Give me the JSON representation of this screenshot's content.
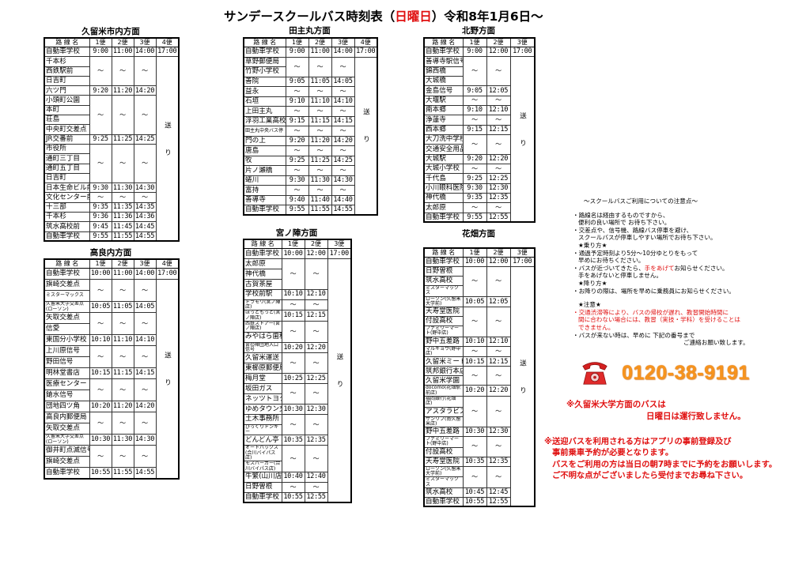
{
  "title": {
    "prefix": "サンデースクールバス時刻表（",
    "day": "日曜日",
    "suffix": "）令和8年1月6日～"
  },
  "tables": [
    {
      "title": "久留米市内方面",
      "headers": [
        "路 線 名",
        "1便",
        "2便",
        "3便",
        "4便"
      ],
      "send_label": "送り",
      "segments": [
        {
          "stops": [
            "自動車学校"
          ],
          "times": [
            "9:00",
            "11:00",
            "14:00",
            "17:00"
          ]
        },
        {
          "stops": [
            "千本杉",
            "西鉄駅前",
            "日吉町"
          ],
          "times": [
            "〜",
            "〜",
            "〜"
          ]
        },
        {
          "stops": [
            "六ツ門"
          ],
          "times": [
            "9:20",
            "11:20",
            "14:20"
          ]
        },
        {
          "stops": [
            "小頭町公園",
            "本町",
            "荘島",
            "中央町交差点"
          ],
          "times": [
            "〜",
            "〜",
            "〜"
          ]
        },
        {
          "stops": [
            "JR交番前"
          ],
          "times": [
            "9:25",
            "11:25",
            "14:25"
          ]
        },
        {
          "stops": [
            "市役所",
            "通町三丁目",
            "通町五丁目",
            "日吉町"
          ],
          "times": [
            "〜",
            "〜",
            "〜"
          ]
        },
        {
          "stops": [
            "日本生命ビル前"
          ],
          "times": [
            "9:30",
            "11:30",
            "14:30"
          ]
        },
        {
          "stops": [
            "文化センター前"
          ],
          "times": [
            "〜",
            "〜",
            "〜"
          ]
        },
        {
          "stops": [
            "十三部"
          ],
          "times": [
            "9:35",
            "11:35",
            "14:35"
          ]
        },
        {
          "stops": [
            "千本杉"
          ],
          "times": [
            "9:36",
            "11:36",
            "14:36"
          ]
        },
        {
          "stops": [
            "筑水高校前"
          ],
          "times": [
            "9:45",
            "11:45",
            "14:45"
          ]
        },
        {
          "stops": [
            "自動車学校"
          ],
          "times": [
            "9:55",
            "11:55",
            "14:55"
          ]
        }
      ]
    },
    {
      "title": "高良内方面",
      "headers": [
        "路 線 名",
        "1便",
        "2便",
        "3便",
        "4便"
      ],
      "send_label": "送り",
      "segments": [
        {
          "stops": [
            "自動車学校"
          ],
          "times": [
            "10:00",
            "11:00",
            "14:00",
            "17:00"
          ]
        },
        {
          "stops": [
            "旗崎交差点",
            "ミスターマックス"
          ],
          "times": [
            "〜",
            "〜",
            "〜"
          ]
        },
        {
          "stops": [
            "久留米大学交差点(ローソン)"
          ],
          "times": [
            "10:05",
            "11:05",
            "14:05"
          ]
        },
        {
          "stops": [
            "矢取交差点",
            "信愛"
          ],
          "times": [
            "〜",
            "〜",
            "〜"
          ]
        },
        {
          "stops": [
            "東国分小学校"
          ],
          "times": [
            "10:10",
            "11:10",
            "14:10"
          ]
        },
        {
          "stops": [
            "上川原信号",
            "野田信号"
          ],
          "times": [
            "〜",
            "〜",
            "〜"
          ]
        },
        {
          "stops": [
            "明林堂書店"
          ],
          "times": [
            "10:15",
            "11:15",
            "14:15"
          ]
        },
        {
          "stops": [
            "医療センター",
            "鎗水信号"
          ],
          "times": [
            "〜",
            "〜",
            "〜"
          ]
        },
        {
          "stops": [
            "団地四ツ角"
          ],
          "times": [
            "10:20",
            "11:20",
            "14:20"
          ]
        },
        {
          "stops": [
            "高良内郵便局",
            "矢取交差点"
          ],
          "times": [
            "〜",
            "〜",
            "〜"
          ]
        },
        {
          "stops": [
            "久留米大学交差点(ローソン)"
          ],
          "times": [
            "10:30",
            "11:30",
            "14:30"
          ]
        },
        {
          "stops": [
            "御井町点滅信号",
            "旗崎交差点"
          ],
          "times": [
            "〜",
            "〜",
            "〜"
          ]
        },
        {
          "stops": [
            "自動車学校"
          ],
          "times": [
            "10:55",
            "11:55",
            "14:55"
          ]
        }
      ]
    },
    {
      "title": "田主丸方面",
      "headers": [
        "路 線 名",
        "1便",
        "2便",
        "3便",
        "4便"
      ],
      "send_label": "送り",
      "segments": [
        {
          "stops": [
            "自動車学校"
          ],
          "times": [
            "9:00",
            "11:00",
            "14:00",
            "17:00"
          ]
        },
        {
          "stops": [
            "草野郵便局",
            "竹野小学校"
          ],
          "times": [
            "〜",
            "〜",
            "〜"
          ]
        },
        {
          "stops": [
            "善院"
          ],
          "times": [
            "9:05",
            "11:05",
            "14:05"
          ]
        },
        {
          "stops": [
            "益永"
          ],
          "times": [
            "〜",
            "〜",
            "〜"
          ]
        },
        {
          "stops": [
            "石垣"
          ],
          "times": [
            "9:10",
            "11:10",
            "14:10"
          ]
        },
        {
          "stops": [
            "上田主丸"
          ],
          "times": [
            "〜",
            "〜",
            "〜"
          ]
        },
        {
          "stops": [
            "浮羽工業高校前"
          ],
          "times": [
            "9:15",
            "11:15",
            "14:15"
          ]
        },
        {
          "stops": [
            "田主丸中央バス停"
          ],
          "times": [
            "〜",
            "〜",
            "〜"
          ]
        },
        {
          "stops": [
            "門の上"
          ],
          "times": [
            "9:20",
            "11:20",
            "14:20"
          ]
        },
        {
          "stops": [
            "唐島"
          ],
          "times": [
            "〜",
            "〜",
            "〜"
          ]
        },
        {
          "stops": [
            "牧"
          ],
          "times": [
            "9:25",
            "11:25",
            "14:25"
          ]
        },
        {
          "stops": [
            "片ノ瀬橋"
          ],
          "times": [
            "〜",
            "〜",
            "〜"
          ]
        },
        {
          "stops": [
            "蜷川"
          ],
          "times": [
            "9:30",
            "11:30",
            "14:30"
          ]
        },
        {
          "stops": [
            "富持"
          ],
          "times": [
            "〜",
            "〜",
            "〜"
          ]
        },
        {
          "stops": [
            "善導寺"
          ],
          "times": [
            "9:40",
            "11:40",
            "14:40"
          ]
        },
        {
          "stops": [
            "自動車学校"
          ],
          "times": [
            "9:55",
            "11:55",
            "14:55"
          ]
        }
      ]
    },
    {
      "title": "宮ノ陣方面",
      "headers": [
        "路 線 名",
        "1便",
        "2便",
        "3便"
      ],
      "send_label": "送り",
      "segments": [
        {
          "stops": [
            "自動車学校"
          ],
          "times": [
            "10:00",
            "12:00",
            "17:00"
          ]
        },
        {
          "stops": [
            "太郎原",
            "神代橋",
            "古賀茶屋"
          ],
          "times": [
            "〜",
            "〜"
          ]
        },
        {
          "stops": [
            "学校前駅"
          ],
          "times": [
            "10:10",
            "12:10"
          ]
        },
        {
          "stops": [
            "ドラモリ(宮ノ陣店)"
          ],
          "times": [
            "〜",
            "〜"
          ]
        },
        {
          "stops": [
            "ほっともっと(宮ノ陣店)"
          ],
          "times": [
            "10:15",
            "12:15"
          ]
        },
        {
          "stops": [
            "西鉄ストアー(宮ノ陣店)",
            "みやはら歯科"
          ],
          "times": [
            "〜",
            "〜"
          ]
        },
        {
          "stops": [
            "宮の陣団地入口信号"
          ],
          "times": [
            "10:20",
            "12:20"
          ]
        },
        {
          "stops": [
            "久留米運送",
            "東櫛原郵便局"
          ],
          "times": [
            "〜",
            "〜"
          ]
        },
        {
          "stops": [
            "梅月堂"
          ],
          "times": [
            "10:25",
            "12:25"
          ]
        },
        {
          "stops": [
            "坂田ガス",
            "ネッツトヨタ前"
          ],
          "times": [
            "〜",
            "〜"
          ]
        },
        {
          "stops": [
            "ゆめタウン交差"
          ],
          "times": [
            "10:30",
            "12:30"
          ]
        },
        {
          "stops": [
            "土木事務所",
            "びっくりドンキー"
          ],
          "times": [
            "〜",
            "〜"
          ]
        },
        {
          "stops": [
            "どんどん亭"
          ],
          "times": [
            "10:35",
            "12:35"
          ]
        },
        {
          "stops": [
            "オートバックス(合川バイパス店)",
            "モスバーガー(合川バイパス店)"
          ],
          "times": [
            "〜",
            "〜"
          ]
        },
        {
          "stops": [
            "牛繁(山川店)"
          ],
          "times": [
            "10:40",
            "12:40"
          ]
        },
        {
          "stops": [
            "日野曽根"
          ],
          "times": [
            "〜",
            "〜"
          ]
        },
        {
          "stops": [
            "自動車学校"
          ],
          "times": [
            "10:55",
            "12:55"
          ]
        }
      ]
    },
    {
      "title": "北野方面",
      "headers": [
        "路 線 名",
        "1便",
        "2便",
        "3便"
      ],
      "send_label": "送り",
      "segments": [
        {
          "stops": [
            "自動車学校"
          ],
          "times": [
            "9:00",
            "12:00",
            "17:00"
          ]
        },
        {
          "stops": [
            "善導寺駅信号",
            "錦西橋",
            "大城橋"
          ],
          "times": [
            "〜",
            "〜"
          ]
        },
        {
          "stops": [
            "金島信号"
          ],
          "times": [
            "9:05",
            "12:05"
          ]
        },
        {
          "stops": [
            "大堰駅"
          ],
          "times": [
            "〜",
            "〜"
          ]
        },
        {
          "stops": [
            "南本郷"
          ],
          "times": [
            "9:10",
            "12:10"
          ]
        },
        {
          "stops": [
            "浄蓮寺"
          ],
          "times": [
            "〜",
            "〜"
          ]
        },
        {
          "stops": [
            "西本郷"
          ],
          "times": [
            "9:15",
            "12:15"
          ]
        },
        {
          "stops": [
            "大刀洗中学校前",
            "交通安全用品"
          ],
          "times": [
            "〜",
            "〜"
          ]
        },
        {
          "stops": [
            "大城駅"
          ],
          "times": [
            "9:20",
            "12:20"
          ]
        },
        {
          "stops": [
            "大城小学校"
          ],
          "times": [
            "〜",
            "〜"
          ]
        },
        {
          "stops": [
            "千代島"
          ],
          "times": [
            "9:25",
            "12:25"
          ]
        },
        {
          "stops": [
            "小川眼科医院"
          ],
          "times": [
            "9:30",
            "12:30"
          ]
        },
        {
          "stops": [
            "神代橋"
          ],
          "times": [
            "9:35",
            "12:35"
          ]
        },
        {
          "stops": [
            "太郎原"
          ],
          "times": [
            "〜",
            "〜"
          ]
        },
        {
          "stops": [
            "自動車学校"
          ],
          "times": [
            "9:55",
            "12:55"
          ]
        }
      ]
    },
    {
      "title": "花畑方面",
      "headers": [
        "路 線 名",
        "1便",
        "2便",
        "3便"
      ],
      "send_label": "送り",
      "segments": [
        {
          "stops": [
            "自動車学校"
          ],
          "times": [
            "10:00",
            "12:00",
            "17:00"
          ]
        },
        {
          "stops": [
            "日野曽根",
            "筑水高校",
            "ミスターマックス"
          ],
          "times": [
            "〜",
            "〜"
          ]
        },
        {
          "stops": [
            "ローソン(久留米大学前)"
          ],
          "times": [
            "10:05",
            "12:05"
          ]
        },
        {
          "stops": [
            "天寿堂医院",
            "付設高校",
            "ファミリーマート(野中店)"
          ],
          "times": [
            "〜",
            "〜"
          ]
        },
        {
          "stops": [
            "野中五差路"
          ],
          "times": [
            "10:10",
            "12:10"
          ]
        },
        {
          "stops": [
            "マルキョウ(野中店)"
          ],
          "times": [
            "〜",
            "〜"
          ]
        },
        {
          "stops": [
            "久留米ミート"
          ],
          "times": [
            "10:15",
            "12:15"
          ]
        },
        {
          "stops": [
            "筑邦銀行本店",
            "久留米学園"
          ],
          "times": [
            "〜",
            "〜"
          ]
        },
        {
          "stops": [
            "docomo(花畑駅前店)"
          ],
          "times": [
            "10:20",
            "12:20"
          ]
        },
        {
          "stops": [
            "福岡銀行(花畑店)",
            "アスタラビスタ",
            "サンリブ(南久留米店)"
          ],
          "times": [
            "〜",
            "〜"
          ]
        },
        {
          "stops": [
            "野中五差路"
          ],
          "times": [
            "10:30",
            "12:30"
          ]
        },
        {
          "stops": [
            "ファミリーマート(野中店)",
            "付設高校"
          ],
          "times": [
            "〜",
            "〜"
          ]
        },
        {
          "stops": [
            "天寿堂医院"
          ],
          "times": [
            "10:35",
            "12:35"
          ]
        },
        {
          "stops": [
            "ローソン(久留米大学前)",
            "ミスターマックス"
          ],
          "times": [
            "〜",
            "〜"
          ]
        },
        {
          "stops": [
            "筑水高校"
          ],
          "times": [
            "10:45",
            "12:45"
          ]
        },
        {
          "stops": [
            "自動車学校"
          ],
          "times": [
            "10:55",
            "12:55"
          ]
        }
      ]
    }
  ],
  "notes": {
    "heading": "～スクールバスご利用についての注意点～",
    "line1": "・路線名は経由するものですから、",
    "line2": "便利の良い場所で お待ち下さい。",
    "line3": "・交差点や、信号機、路線バス停車を避け、",
    "line4": "スクールバスが停車しやすい場所でお待ち下さい。",
    "boarding_heading": "★乗り方★",
    "line5": "・通過予定時刻より5分～10分ゆとりをもって",
    "line6": "早めにお待ちください。",
    "line7_pre": "・バスが近づいてきたら、",
    "line7_red": "手をあげて",
    "line7_post": "お知らせください。",
    "line8": "手をあげないと停車しません。",
    "alighting_heading": "★降り方★",
    "line9": "・お降りの際は、場所を早めに乗務員にお知らせください。",
    "caution_heading": "★注意★",
    "caution1": "・交通渋滞等により、バスの帰校が遅れ、教習開始時間に",
    "caution2": "間に合わない場合には、教習（実技・学科）を受けることは",
    "caution3": "できません。",
    "line10": "・バスが来ない時は、早めに 下記の番号まで",
    "line11": "ご連絡お願い致します。"
  },
  "phone": {
    "number": "0120-38-9191",
    "icon": "red-telephone-icon",
    "color": "#f7941d"
  },
  "warning_university": {
    "line1": "※久留米大学方面のバスは",
    "line2": "日曜日は運行致しません。"
  },
  "warning_reservation": {
    "line1": "※送迎バスを利用される方はアプリの事前登録及び",
    "line2": "事前乗車予約が必要となります。",
    "line3": "バスをご利用の方は当日の朝7時までに予約をお願いします。",
    "line4": "ご不明な点がございましたら受付までお尋ね下さい。"
  },
  "colors": {
    "accent_red": "#e01010",
    "phone_orange": "#f7941d"
  }
}
